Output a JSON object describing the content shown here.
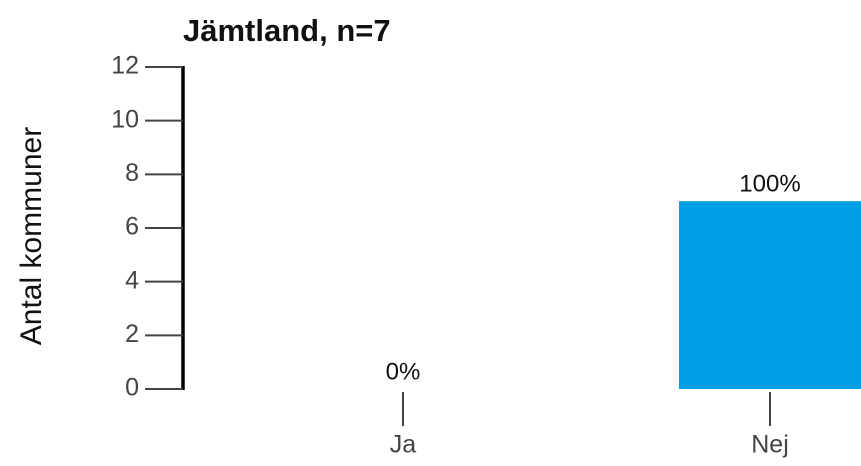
{
  "chart_data": {
    "type": "bar",
    "title": "Jämtland, n=7",
    "ylabel": "Antal kommuner",
    "categories": [
      "Ja",
      "Nej"
    ],
    "values": [
      0,
      7
    ],
    "bar_labels": [
      "0%",
      "100%"
    ],
    "color": "#009fe3",
    "ylim": [
      0,
      12
    ],
    "yticks": [
      0,
      2,
      4,
      6,
      8,
      10,
      12
    ],
    "grid": false
  }
}
